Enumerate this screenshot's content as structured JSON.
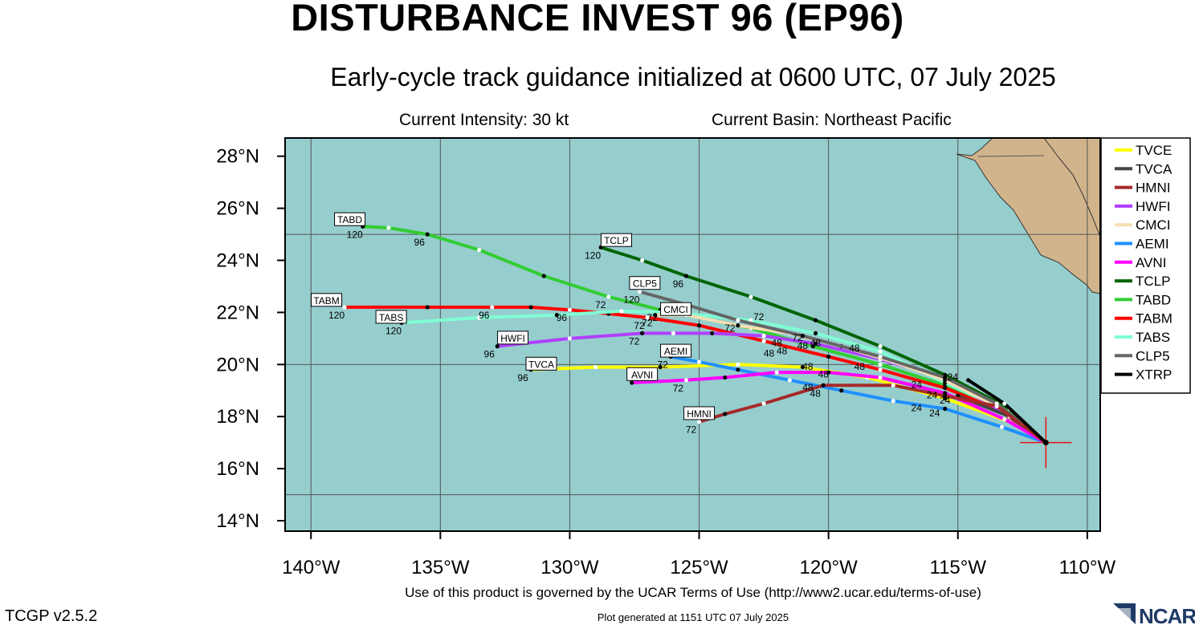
{
  "title": "DISTURBANCE INVEST 96 (EP96)",
  "subtitle": "Early-cycle track guidance initialized at 0600 UTC, 07 July 2025",
  "current_intensity": "Current Intensity: 30 kt",
  "current_basin": "Current Basin: Northeast Pacific",
  "terms": "Use of this product is governed by the UCAR Terms of Use (http://www2.ucar.edu/terms-of-use)",
  "version": "TCGP v2.5.2",
  "generated": "Plot generated at 1151 UTC   07 July 2025",
  "logo_text": "NCAR",
  "colors": {
    "ocean": "#96cdcd",
    "land": "#d2b48c",
    "grid": "#555555",
    "current_position": "#ee1111"
  },
  "map": {
    "lon_range": [
      -141,
      -109.5
    ],
    "lat_range": [
      13.6,
      28.7
    ],
    "lon_ticks": [
      {
        "v": -140,
        "label": "140°W"
      },
      {
        "v": -135,
        "label": "135°W"
      },
      {
        "v": -130,
        "label": "130°W"
      },
      {
        "v": -125,
        "label": "125°W"
      },
      {
        "v": -120,
        "label": "120°W"
      },
      {
        "v": -115,
        "label": "115°W"
      },
      {
        "v": -110,
        "label": "110°W"
      }
    ],
    "lat_ticks": [
      {
        "v": 14,
        "label": "14°N"
      },
      {
        "v": 16,
        "label": "16°N"
      },
      {
        "v": 18,
        "label": "18°N"
      },
      {
        "v": 20,
        "label": "20°N"
      },
      {
        "v": 22,
        "label": "22°N"
      },
      {
        "v": 24,
        "label": "24°N"
      },
      {
        "v": 26,
        "label": "26°N"
      },
      {
        "v": 28,
        "label": "28°N"
      }
    ],
    "grid_lons": [
      -140,
      -135,
      -130,
      -125,
      -120,
      -115,
      -110
    ],
    "grid_lats": [
      15,
      20,
      25
    ],
    "current_position": {
      "lon": -111.6,
      "lat": 17.0
    }
  },
  "legend": [
    {
      "name": "TVCE",
      "color": "#ffff00"
    },
    {
      "name": "TVCA",
      "color": "#444444"
    },
    {
      "name": "HMNI",
      "color": "#a52a2a"
    },
    {
      "name": "HWFI",
      "color": "#b040ff"
    },
    {
      "name": "CMCI",
      "color": "#f5deb3"
    },
    {
      "name": "AEMI",
      "color": "#1e90ff"
    },
    {
      "name": "AVNI",
      "color": "#ff00ff"
    },
    {
      "name": "TCLP",
      "color": "#006400"
    },
    {
      "name": "TABD",
      "color": "#32cd32"
    },
    {
      "name": "TABM",
      "color": "#ff0000"
    },
    {
      "name": "TABS",
      "color": "#7fffd4"
    },
    {
      "name": "CLP5",
      "color": "#666666"
    },
    {
      "name": "XTRP",
      "color": "#000000"
    }
  ],
  "tracks": [
    {
      "name": "TABD",
      "color": "#32cd32",
      "points": [
        [
          -111.6,
          17
        ],
        [
          -113.2,
          18.3
        ],
        [
          -115.5,
          19.2
        ],
        [
          -118,
          20
        ],
        [
          -120.6,
          20.7
        ],
        [
          -123,
          21.4
        ],
        [
          -126.5,
          22.1
        ],
        [
          -128.5,
          22.6
        ],
        [
          -131,
          23.4
        ],
        [
          -133.5,
          24.4
        ],
        [
          -135.5,
          25
        ],
        [
          -137,
          25.25
        ],
        [
          -138,
          25.3
        ]
      ],
      "taus": [
        {
          "i": 6,
          "label": "72"
        },
        {
          "i": 7,
          "label": "72"
        },
        {
          "i": 10,
          "label": "96"
        },
        {
          "i": 12,
          "label": "120"
        }
      ]
    },
    {
      "name": "TCLP",
      "color": "#006400",
      "points": [
        [
          -111.6,
          17
        ],
        [
          -113,
          18.3
        ],
        [
          -115.5,
          19.6
        ],
        [
          -118,
          20.7
        ],
        [
          -120.5,
          21.7
        ],
        [
          -123,
          22.6
        ],
        [
          -125.5,
          23.4
        ],
        [
          -127.2,
          24
        ],
        [
          -128.8,
          24.5
        ]
      ],
      "taus": [
        {
          "i": 6,
          "label": "96"
        },
        {
          "i": 8,
          "label": "120"
        }
      ]
    },
    {
      "name": "TABM",
      "color": "#ff0000",
      "points": [
        [
          -111.6,
          17
        ],
        [
          -113.5,
          18.3
        ],
        [
          -115.5,
          19.1
        ],
        [
          -118,
          19.8
        ],
        [
          -120,
          20.3
        ],
        [
          -122.5,
          20.9
        ],
        [
          -125,
          21.5
        ],
        [
          -127,
          21.8
        ],
        [
          -128.5,
          21.95
        ],
        [
          -130,
          22.1
        ],
        [
          -131.5,
          22.2
        ],
        [
          -133,
          22.2
        ],
        [
          -135.5,
          22.2
        ],
        [
          -138.7,
          22.2
        ]
      ],
      "taus": [
        {
          "i": 7,
          "label": "72"
        },
        {
          "i": 9,
          "label": "96"
        },
        {
          "i": 11,
          "label": "96"
        },
        {
          "i": 13,
          "label": "120"
        }
      ]
    },
    {
      "name": "TABS",
      "color": "#7fffd4",
      "points": [
        [
          -111.6,
          17
        ],
        [
          -113.3,
          18.3
        ],
        [
          -115.5,
          19.3
        ],
        [
          -118,
          20.5
        ],
        [
          -120.5,
          21.2
        ],
        [
          -123,
          21.7
        ],
        [
          -126,
          22
        ],
        [
          -128,
          22.05
        ],
        [
          -130.5,
          21.9
        ],
        [
          -133.5,
          21.8
        ],
        [
          -136.5,
          21.6
        ]
      ],
      "taus": [
        {
          "i": 10,
          "label": "120"
        }
      ]
    },
    {
      "name": "HWFI",
      "color": "#b040ff",
      "points": [
        [
          -111.6,
          17
        ],
        [
          -113.3,
          18.2
        ],
        [
          -115.5,
          19.5
        ],
        [
          -118,
          20.2
        ],
        [
          -120.5,
          20.8
        ],
        [
          -122.5,
          21.1
        ],
        [
          -124.5,
          21.2
        ],
        [
          -126,
          21.2
        ],
        [
          -127.2,
          21.2
        ],
        [
          -130,
          21.0
        ],
        [
          -132.8,
          20.7
        ]
      ],
      "taus": [
        {
          "i": 8,
          "label": "72"
        },
        {
          "i": 10,
          "label": "96"
        }
      ]
    },
    {
      "name": "CMCI",
      "color": "#f5deb3",
      "points": [
        [
          -111.6,
          17
        ],
        [
          -113.5,
          18.4
        ],
        [
          -115.5,
          19.4
        ],
        [
          -117.5,
          20.1
        ],
        [
          -119.5,
          20.7
        ],
        [
          -121.5,
          21.2
        ],
        [
          -123.5,
          21.5
        ],
        [
          -125.5,
          21.9
        ],
        [
          -126.7,
          21.9
        ]
      ],
      "taus": [
        {
          "i": 8,
          "label": "72"
        }
      ]
    },
    {
      "name": "CLP5",
      "color": "#666666",
      "points": [
        [
          -111.6,
          17
        ],
        [
          -113.5,
          18.5
        ],
        [
          -115.5,
          19.5
        ],
        [
          -118,
          20.3
        ],
        [
          -121,
          21.1
        ],
        [
          -123.5,
          21.7
        ],
        [
          -125.5,
          22.3
        ],
        [
          -127.3,
          22.8
        ]
      ],
      "taus": [
        {
          "i": 5,
          "label": "72"
        },
        {
          "i": 7,
          "label": "120"
        }
      ]
    },
    {
      "name": "TVCE",
      "color": "#ffff00",
      "points": [
        [
          -111.6,
          17
        ],
        [
          -113,
          17.8
        ],
        [
          -115.5,
          18.7
        ],
        [
          -118.5,
          19.5
        ],
        [
          -121,
          19.9
        ],
        [
          -123.5,
          20
        ],
        [
          -126.5,
          19.9
        ],
        [
          -129,
          19.9
        ],
        [
          -131.5,
          19.8
        ]
      ],
      "taus": [
        {
          "i": 8,
          "label": "96"
        }
      ]
    },
    {
      "name": "TVCA",
      "color": "#444444",
      "points": [
        [
          -111.6,
          17
        ],
        [
          -113,
          18
        ],
        [
          -115,
          18.8
        ]
      ],
      "taus": []
    },
    {
      "name": "AEMI",
      "color": "#1e90ff",
      "points": [
        [
          -111.6,
          17
        ],
        [
          -113.3,
          17.6
        ],
        [
          -115.5,
          18.3
        ],
        [
          -117.5,
          18.6
        ],
        [
          -119.5,
          19
        ],
        [
          -121.5,
          19.4
        ],
        [
          -123.5,
          19.8
        ],
        [
          -125,
          20.1
        ],
        [
          -126.1,
          20.3
        ]
      ],
      "taus": [
        {
          "i": 8,
          "label": "72"
        }
      ]
    },
    {
      "name": "AVNI",
      "color": "#ff00ff",
      "points": [
        [
          -111.6,
          17
        ],
        [
          -113.2,
          17.9
        ],
        [
          -115.5,
          18.9
        ],
        [
          -118,
          19.5
        ],
        [
          -120,
          19.7
        ],
        [
          -122,
          19.7
        ],
        [
          -124,
          19.5
        ],
        [
          -125.5,
          19.4
        ],
        [
          -127.6,
          19.3
        ]
      ],
      "taus": [
        {
          "i": 7,
          "label": "72"
        }
      ]
    },
    {
      "name": "HMNI",
      "color": "#a52a2a",
      "points": [
        [
          -111.6,
          17
        ],
        [
          -113.5,
          18.4
        ],
        [
          -115.5,
          18.8
        ],
        [
          -117.5,
          19.2
        ],
        [
          -120.2,
          19.2
        ],
        [
          -122.5,
          18.5
        ],
        [
          -124,
          18.1
        ],
        [
          -125,
          17.8
        ]
      ],
      "taus": [
        {
          "i": 4,
          "label": "48"
        },
        {
          "i": 7,
          "label": "72"
        }
      ]
    },
    {
      "name": "XTRP",
      "color": "#000000",
      "points": [
        [
          -111.6,
          17
        ],
        [
          -113.2,
          18.5
        ],
        [
          -114.6,
          19.4
        ]
      ],
      "taus": []
    }
  ],
  "map_labels": [
    {
      "text": "TABD",
      "lon": -138.5,
      "lat": 25.55
    },
    {
      "text": "TCLP",
      "lon": -128.2,
      "lat": 24.75
    },
    {
      "text": "TABM",
      "lon": -139.4,
      "lat": 22.45
    },
    {
      "text": "TABS",
      "lon": -136.9,
      "lat": 21.8
    },
    {
      "text": "CLP5",
      "lon": -127.1,
      "lat": 23.1
    },
    {
      "text": "CMCI",
      "lon": -125.9,
      "lat": 22.1
    },
    {
      "text": "HWFI",
      "lon": -132.2,
      "lat": 21.0
    },
    {
      "text": "AEMI",
      "lon": -125.9,
      "lat": 20.5
    },
    {
      "text": "TVCA",
      "lon": -131.1,
      "lat": 20.0
    },
    {
      "text": "AVNI",
      "lon": -127.2,
      "lat": 19.6
    },
    {
      "text": "HMNI",
      "lon": -125.0,
      "lat": 18.1
    }
  ],
  "tau_labels": [
    {
      "text": "72",
      "lon": -122.7,
      "lat": 21.7
    },
    {
      "text": "48",
      "lon": -122.0,
      "lat": 20.7
    },
    {
      "text": "48",
      "lon": -121.8,
      "lat": 20.4
    },
    {
      "text": "72",
      "lon": -121.2,
      "lat": 20.9
    },
    {
      "text": "48",
      "lon": -121.0,
      "lat": 20.6
    },
    {
      "text": "48",
      "lon": -120.5,
      "lat": 20.7
    },
    {
      "text": "48",
      "lon": -122.3,
      "lat": 20.3
    },
    {
      "text": "48",
      "lon": -119.0,
      "lat": 20.5
    },
    {
      "text": "48",
      "lon": -118.8,
      "lat": 19.8
    },
    {
      "text": "48",
      "lon": -120.8,
      "lat": 19.8
    },
    {
      "text": "48",
      "lon": -120.2,
      "lat": 19.5
    },
    {
      "text": "48",
      "lon": -120.8,
      "lat": 19.0
    },
    {
      "text": "24",
      "lon": -116.6,
      "lat": 19.1
    },
    {
      "text": "24",
      "lon": -115.2,
      "lat": 19.4
    },
    {
      "text": "24",
      "lon": -116.6,
      "lat": 18.2
    },
    {
      "text": "24",
      "lon": -116.0,
      "lat": 18.7
    },
    {
      "text": "24",
      "lon": -115.9,
      "lat": 18.0
    },
    {
      "text": "24",
      "lon": -115.5,
      "lat": 18.5
    }
  ]
}
